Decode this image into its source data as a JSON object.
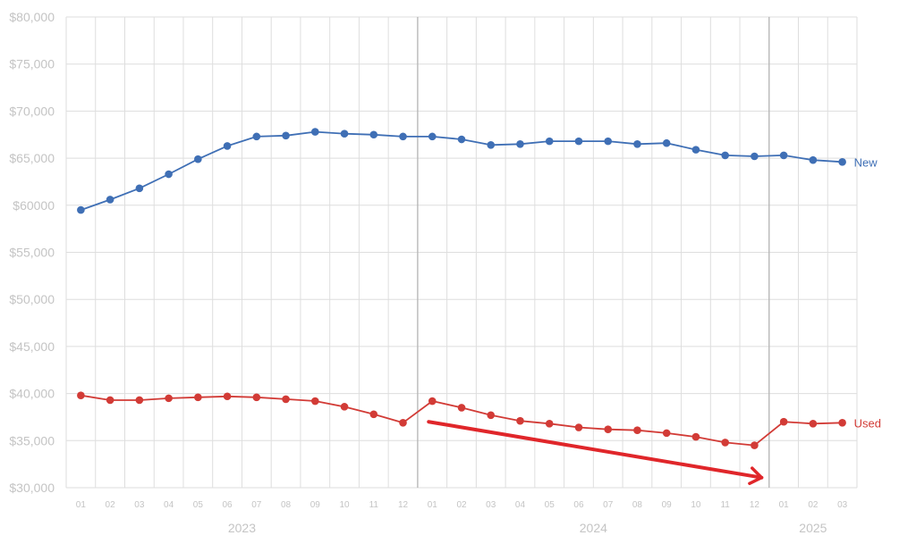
{
  "chart_data": {
    "type": "line",
    "title": "",
    "xlabel": "",
    "ylabel": "",
    "ylim": [
      30000,
      80000
    ],
    "ytick_labels": [
      "$30,000",
      "$35,000",
      "$40,000",
      "$45,000",
      "$50,000",
      "$55,000",
      "$60000",
      "$65,000",
      "$70,000",
      "$75,000",
      "$80,000"
    ],
    "grid": true,
    "categories": [
      "01",
      "02",
      "03",
      "04",
      "05",
      "06",
      "07",
      "08",
      "09",
      "10",
      "11",
      "12",
      "01",
      "02",
      "03",
      "04",
      "05",
      "06",
      "07",
      "08",
      "09",
      "10",
      "11",
      "12",
      "01",
      "02",
      "03"
    ],
    "x": [
      "2023-01",
      "2023-02",
      "2023-03",
      "2023-04",
      "2023-05",
      "2023-06",
      "2023-07",
      "2023-08",
      "2023-09",
      "2023-10",
      "2023-11",
      "2023-12",
      "2024-01",
      "2024-02",
      "2024-03",
      "2024-04",
      "2024-05",
      "2024-06",
      "2024-07",
      "2024-08",
      "2024-09",
      "2024-10",
      "2024-11",
      "2024-12",
      "2025-01",
      "2025-02",
      "2025-03"
    ],
    "year_labels": [
      "2023",
      "2024",
      "2025"
    ],
    "series": [
      {
        "name": "New",
        "color": "#3f6fb5",
        "values": [
          59500,
          60600,
          61800,
          63300,
          64900,
          66300,
          67300,
          67400,
          67800,
          67600,
          67500,
          67300,
          67300,
          67000,
          66400,
          66500,
          66800,
          66800,
          66800,
          66500,
          66600,
          65900,
          65300,
          65200,
          65300,
          64800,
          64600
        ]
      },
      {
        "name": "Used",
        "color": "#d23b36",
        "values": [
          39800,
          39300,
          39300,
          39500,
          39600,
          39700,
          39600,
          39400,
          39200,
          38600,
          37800,
          36900,
          39200,
          38500,
          37700,
          37100,
          36800,
          36400,
          36200,
          36100,
          35800,
          35400,
          34800,
          34500,
          37000,
          36800,
          36900
        ]
      }
    ],
    "annotations": [
      {
        "type": "arrow",
        "color": "#e0262a",
        "from": [
          "2024-01",
          37000
        ],
        "to": [
          "2024-12",
          32400
        ]
      }
    ]
  }
}
